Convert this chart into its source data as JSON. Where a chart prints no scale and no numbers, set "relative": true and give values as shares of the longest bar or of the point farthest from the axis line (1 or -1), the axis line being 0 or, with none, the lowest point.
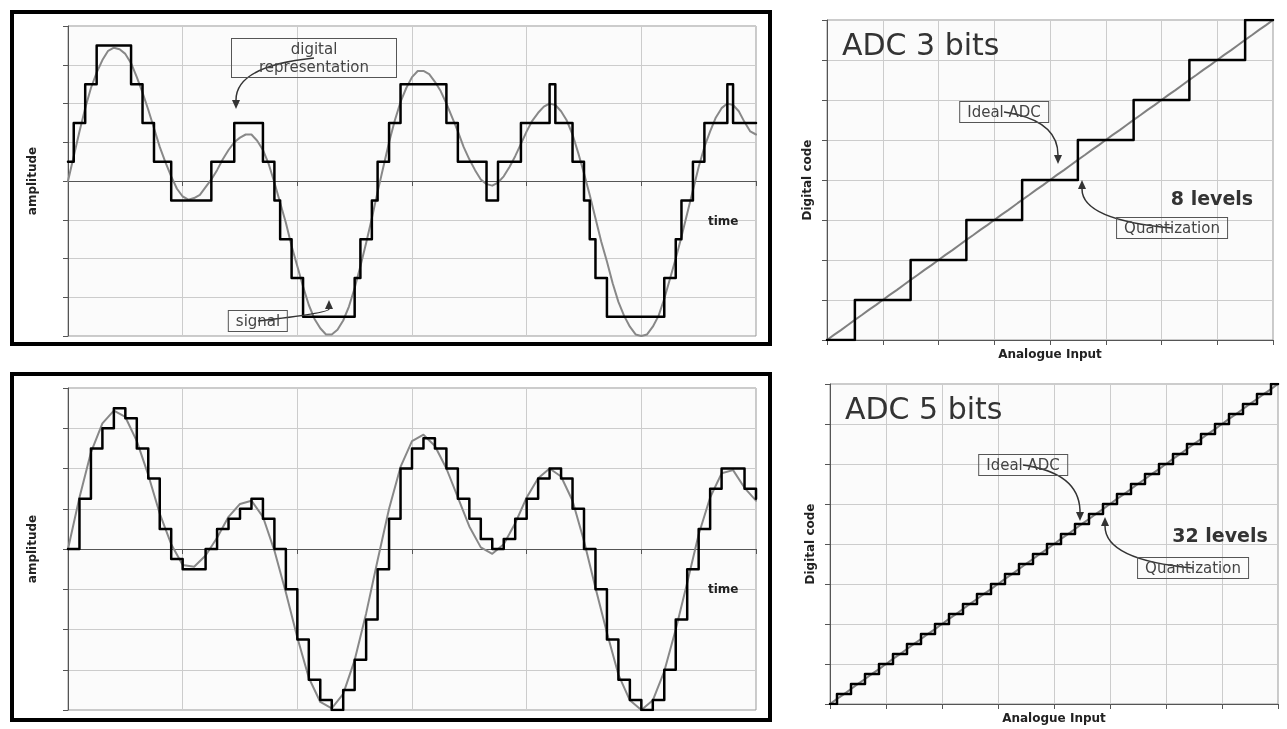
{
  "chart_data": [
    {
      "type": "line",
      "xlabel": "time",
      "ylabel": "amplitude",
      "relative": true,
      "tick_labels": false,
      "grid": true,
      "marker": "none",
      "annotations": [
        "digital representation",
        "signal"
      ],
      "categories": [
        null,
        null,
        null,
        null,
        null,
        null,
        null,
        null,
        null,
        null,
        null,
        null,
        null,
        null,
        null,
        null,
        null,
        null,
        null,
        null,
        null,
        null,
        null,
        null,
        null,
        null,
        null,
        null,
        null,
        null,
        null,
        null,
        null,
        null,
        null,
        null,
        null,
        null,
        null,
        null,
        null,
        null,
        null,
        null,
        null,
        null,
        null,
        null,
        null,
        null,
        null,
        null,
        null,
        null,
        null,
        null,
        null,
        null,
        null,
        null,
        null,
        null,
        null,
        null,
        null,
        null,
        null,
        null,
        null,
        null,
        null,
        null,
        null,
        null,
        null,
        null,
        null,
        null,
        null,
        null,
        null,
        null,
        null,
        null,
        null,
        null,
        null,
        null,
        null,
        null,
        null,
        null,
        null,
        null,
        null,
        null,
        null,
        null,
        null,
        null,
        null,
        null,
        null,
        null,
        null,
        null,
        null,
        null,
        null,
        null,
        null,
        null,
        null,
        null,
        null,
        null,
        null,
        null,
        null,
        null,
        null
      ],
      "series": [
        {
          "color": "#888888",
          "values": [
            0,
            0.16,
            0.32,
            0.47,
            0.6,
            0.7,
            0.78,
            0.84,
            0.86,
            0.85,
            0.82,
            0.76,
            0.67,
            0.57,
            0.46,
            0.34,
            0.22,
            0.12,
            0.03,
            -0.05,
            -0.1,
            -0.12,
            -0.11,
            -0.09,
            -0.04,
            0.01,
            0.07,
            0.14,
            0.2,
            0.25,
            0.28,
            0.3,
            0.3,
            0.26,
            0.2,
            0.11,
            -0.01,
            -0.14,
            -0.27,
            -0.42,
            -0.55,
            -0.68,
            -0.8,
            -0.89,
            -0.95,
            -0.99,
            -0.99,
            -0.96,
            -0.9,
            -0.81,
            -0.69,
            -0.55,
            -0.4,
            -0.24,
            -0.07,
            0.09,
            0.25,
            0.39,
            0.51,
            0.6,
            0.67,
            0.71,
            0.71,
            0.69,
            0.64,
            0.58,
            0.5,
            0.41,
            0.32,
            0.22,
            0.14,
            0.07,
            0.01,
            -0.02,
            -0.03,
            -0.01,
            0.03,
            0.09,
            0.16,
            0.24,
            0.32,
            0.39,
            0.44,
            0.48,
            0.5,
            0.49,
            0.45,
            0.39,
            0.3,
            0.18,
            0.05,
            -0.09,
            -0.24,
            -0.39,
            -0.52,
            -0.66,
            -0.78,
            -0.87,
            -0.94,
            -0.99,
            -1,
            -0.99,
            -0.94,
            -0.87,
            -0.76,
            -0.63,
            -0.5,
            -0.36,
            -0.21,
            -0.06,
            0.09,
            0.22,
            0.32,
            0.41,
            0.47,
            0.5,
            0.49,
            0.45,
            0.38,
            0.32,
            0.3
          ]
        },
        {
          "type": "step",
          "color": "#000000",
          "values": [
            0.125,
            0.375,
            0.375,
            0.625,
            0.625,
            0.875,
            0.875,
            0.875,
            0.875,
            0.875,
            0.875,
            0.625,
            0.625,
            0.375,
            0.375,
            0.125,
            0.125,
            0.125,
            -0.125,
            -0.125,
            -0.125,
            -0.125,
            -0.125,
            -0.125,
            -0.125,
            0.125,
            0.125,
            0.125,
            0.125,
            0.375,
            0.375,
            0.375,
            0.375,
            0.375,
            0.125,
            0.125,
            -0.125,
            -0.375,
            -0.375,
            -0.625,
            -0.625,
            -0.875,
            -0.875,
            -0.875,
            -0.875,
            -0.875,
            -0.875,
            -0.875,
            -0.875,
            -0.875,
            -0.625,
            -0.375,
            -0.375,
            -0.125,
            0.125,
            0.125,
            0.375,
            0.375,
            0.625,
            0.625,
            0.625,
            0.625,
            0.625,
            0.625,
            0.625,
            0.625,
            0.375,
            0.375,
            0.125,
            0.125,
            0.125,
            0.125,
            0.125,
            -0.125,
            -0.125,
            0.125,
            0.125,
            0.125,
            0.125,
            0.375,
            0.375,
            0.375,
            0.375,
            0.375,
            0.625,
            0.375,
            0.375,
            0.375,
            0.125,
            0.125,
            -0.125,
            -0.375,
            -0.625,
            -0.625,
            -0.875,
            -0.875,
            -0.875,
            -0.875,
            -0.875,
            -0.875,
            -0.875,
            -0.875,
            -0.875,
            -0.875,
            -0.625,
            -0.625,
            -0.375,
            -0.125,
            -0.125,
            0.125,
            0.125,
            0.375,
            0.375,
            0.375,
            0.375,
            0.625,
            0.375,
            0.375,
            0.375,
            0.375,
            0.375
          ]
        }
      ]
    },
    {
      "type": "line",
      "title": "ADC 3 bits",
      "xlabel": "Analogue Input",
      "ylabel": "Digital code",
      "relative": true,
      "tick_labels": false,
      "grid": true,
      "marker": "none",
      "annotations": [
        "Ideal ADC",
        "Quantization",
        "8 levels"
      ],
      "categories": [
        null,
        null,
        null,
        null,
        null,
        null,
        null,
        null,
        null,
        null,
        null,
        null,
        null,
        null,
        null,
        null,
        null,
        null,
        null,
        null,
        null,
        null,
        null,
        null,
        null,
        null,
        null,
        null,
        null,
        null,
        null,
        null,
        null,
        null,
        null,
        null,
        null,
        null,
        null,
        null,
        null,
        null,
        null,
        null,
        null,
        null,
        null,
        null,
        null,
        null,
        null,
        null,
        null,
        null,
        null,
        null,
        null,
        null,
        null,
        null,
        null,
        null,
        null,
        null,
        null
      ],
      "series": [
        {
          "color": "#808080",
          "values": [
            0,
            0.016,
            0.031,
            0.047,
            0.063,
            0.078,
            0.094,
            0.109,
            0.125,
            0.141,
            0.156,
            0.172,
            0.188,
            0.203,
            0.219,
            0.234,
            0.25,
            0.266,
            0.281,
            0.297,
            0.313,
            0.328,
            0.344,
            0.359,
            0.375,
            0.391,
            0.406,
            0.422,
            0.438,
            0.453,
            0.469,
            0.484,
            0.5,
            0.516,
            0.531,
            0.547,
            0.563,
            0.578,
            0.594,
            0.609,
            0.625,
            0.641,
            0.656,
            0.672,
            0.688,
            0.703,
            0.719,
            0.734,
            0.75,
            0.766,
            0.781,
            0.797,
            0.813,
            0.828,
            0.844,
            0.859,
            0.875,
            0.891,
            0.906,
            0.922,
            0.938,
            0.953,
            0.969,
            0.984,
            1
          ]
        },
        {
          "type": "step",
          "color": "#000000",
          "values": [
            0,
            0,
            0,
            0,
            0.125,
            0.125,
            0.125,
            0.125,
            0.125,
            0.125,
            0.125,
            0.125,
            0.25,
            0.25,
            0.25,
            0.25,
            0.25,
            0.25,
            0.25,
            0.25,
            0.375,
            0.375,
            0.375,
            0.375,
            0.375,
            0.375,
            0.375,
            0.375,
            0.5,
            0.5,
            0.5,
            0.5,
            0.5,
            0.5,
            0.5,
            0.5,
            0.625,
            0.625,
            0.625,
            0.625,
            0.625,
            0.625,
            0.625,
            0.625,
            0.75,
            0.75,
            0.75,
            0.75,
            0.75,
            0.75,
            0.75,
            0.75,
            0.875,
            0.875,
            0.875,
            0.875,
            0.875,
            0.875,
            0.875,
            0.875,
            1,
            1,
            1,
            1,
            1
          ]
        }
      ]
    },
    {
      "type": "line",
      "xlabel": "time",
      "ylabel": "amplitude",
      "relative": true,
      "tick_labels": false,
      "grid": true,
      "marker": "none",
      "categories": [
        null,
        null,
        null,
        null,
        null,
        null,
        null,
        null,
        null,
        null,
        null,
        null,
        null,
        null,
        null,
        null,
        null,
        null,
        null,
        null,
        null,
        null,
        null,
        null,
        null,
        null,
        null,
        null,
        null,
        null,
        null,
        null,
        null,
        null,
        null,
        null,
        null,
        null,
        null,
        null,
        null,
        null,
        null,
        null,
        null,
        null,
        null,
        null,
        null,
        null,
        null,
        null,
        null,
        null,
        null,
        null,
        null,
        null,
        null,
        null,
        null
      ],
      "series": [
        {
          "color": "#888888",
          "values": [
            0,
            0.32,
            0.6,
            0.78,
            0.86,
            0.82,
            0.67,
            0.46,
            0.22,
            0.03,
            -0.1,
            -0.11,
            -0.04,
            0.07,
            0.2,
            0.28,
            0.3,
            0.2,
            -0.01,
            -0.27,
            -0.55,
            -0.8,
            -0.95,
            -0.99,
            -0.9,
            -0.69,
            -0.4,
            -0.07,
            0.25,
            0.51,
            0.67,
            0.71,
            0.64,
            0.5,
            0.32,
            0.14,
            0.01,
            -0.03,
            0.03,
            0.16,
            0.32,
            0.44,
            0.5,
            0.45,
            0.3,
            0.05,
            -0.24,
            -0.52,
            -0.78,
            -0.94,
            -1,
            -0.94,
            -0.76,
            -0.5,
            -0.21,
            0.09,
            0.32,
            0.47,
            0.49,
            0.38,
            0.3
          ]
        },
        {
          "type": "step",
          "color": "#000000",
          "values": [
            0,
            0.3125,
            0.625,
            0.75,
            0.875,
            0.8125,
            0.625,
            0.4375,
            0.125,
            -0.0625,
            -0.125,
            -0.125,
            0,
            0.125,
            0.1875,
            0.25,
            0.3125,
            0.1875,
            0,
            -0.25,
            -0.5625,
            -0.8125,
            -0.9375,
            -1,
            -0.875,
            -0.6875,
            -0.4375,
            -0.125,
            0.1875,
            0.5,
            0.625,
            0.6875,
            0.625,
            0.5,
            0.3125,
            0.1875,
            0.0625,
            0,
            0.0625,
            0.1875,
            0.3125,
            0.4375,
            0.5,
            0.4375,
            0.25,
            0,
            -0.25,
            -0.5625,
            -0.8125,
            -0.9375,
            -1,
            -0.9375,
            -0.75,
            -0.4375,
            -0.125,
            0.125,
            0.375,
            0.5,
            0.5,
            0.375,
            0.3125
          ]
        }
      ]
    },
    {
      "type": "line",
      "title": "ADC 5 bits",
      "xlabel": "Analogue Input",
      "ylabel": "Digital code",
      "relative": true,
      "tick_labels": false,
      "grid": true,
      "marker": "none",
      "annotations": [
        "Ideal ADC",
        "Quantization",
        "32 levels"
      ],
      "categories": [
        null,
        null,
        null,
        null,
        null,
        null,
        null,
        null,
        null,
        null,
        null,
        null,
        null,
        null,
        null,
        null,
        null,
        null,
        null,
        null,
        null,
        null,
        null,
        null,
        null,
        null,
        null,
        null,
        null,
        null,
        null,
        null,
        null,
        null,
        null,
        null,
        null,
        null,
        null,
        null,
        null,
        null,
        null,
        null,
        null,
        null,
        null,
        null,
        null,
        null,
        null,
        null,
        null,
        null,
        null,
        null,
        null,
        null,
        null,
        null,
        null,
        null,
        null,
        null,
        null
      ],
      "series": [
        {
          "color": "#808080",
          "values": [
            0,
            0.016,
            0.031,
            0.047,
            0.063,
            0.078,
            0.094,
            0.109,
            0.125,
            0.141,
            0.156,
            0.172,
            0.188,
            0.203,
            0.219,
            0.234,
            0.25,
            0.266,
            0.281,
            0.297,
            0.313,
            0.328,
            0.344,
            0.359,
            0.375,
            0.391,
            0.406,
            0.422,
            0.438,
            0.453,
            0.469,
            0.484,
            0.5,
            0.516,
            0.531,
            0.547,
            0.563,
            0.578,
            0.594,
            0.609,
            0.625,
            0.641,
            0.656,
            0.672,
            0.688,
            0.703,
            0.719,
            0.734,
            0.75,
            0.766,
            0.781,
            0.797,
            0.813,
            0.828,
            0.844,
            0.859,
            0.875,
            0.891,
            0.906,
            0.922,
            0.938,
            0.953,
            0.969,
            0.984,
            1
          ]
        },
        {
          "type": "step",
          "color": "#000000",
          "values": [
            0,
            0.03125,
            0.03125,
            0.0625,
            0.0625,
            0.09375,
            0.09375,
            0.125,
            0.125,
            0.15625,
            0.15625,
            0.1875,
            0.1875,
            0.21875,
            0.21875,
            0.25,
            0.25,
            0.28125,
            0.28125,
            0.3125,
            0.3125,
            0.34375,
            0.34375,
            0.375,
            0.375,
            0.40625,
            0.40625,
            0.4375,
            0.4375,
            0.46875,
            0.46875,
            0.5,
            0.5,
            0.53125,
            0.53125,
            0.5625,
            0.5625,
            0.59375,
            0.59375,
            0.625,
            0.625,
            0.65625,
            0.65625,
            0.6875,
            0.6875,
            0.71875,
            0.71875,
            0.75,
            0.75,
            0.78125,
            0.78125,
            0.8125,
            0.8125,
            0.84375,
            0.84375,
            0.875,
            0.875,
            0.90625,
            0.90625,
            0.9375,
            0.9375,
            0.96875,
            0.96875,
            1,
            1
          ]
        }
      ]
    }
  ]
}
